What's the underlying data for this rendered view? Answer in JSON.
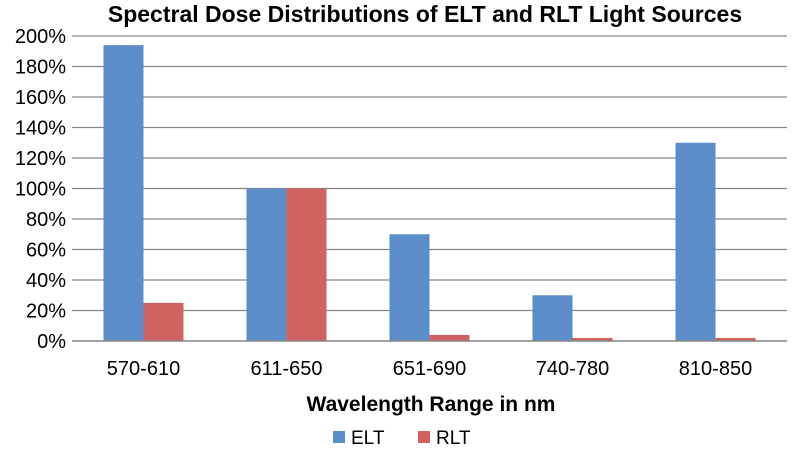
{
  "chart_data": {
    "type": "bar",
    "title": "Spectral Dose Distributions of ELT and RLT Light Sources",
    "xlabel": "Wavelength Range in nm",
    "ylabel": "",
    "categories": [
      "570-610",
      "611-650",
      "651-690",
      "740-780",
      "810-850"
    ],
    "series": [
      {
        "name": "ELT",
        "color": "#5B8DC9",
        "values": [
          194,
          100,
          70,
          30,
          130
        ]
      },
      {
        "name": "RLT",
        "color": "#D0625F",
        "values": [
          25,
          100,
          4,
          2,
          2
        ]
      }
    ],
    "ylim": [
      0,
      200
    ],
    "ytick_step": 20,
    "ytick_suffix": "%",
    "grid": true,
    "legend_position": "bottom"
  }
}
